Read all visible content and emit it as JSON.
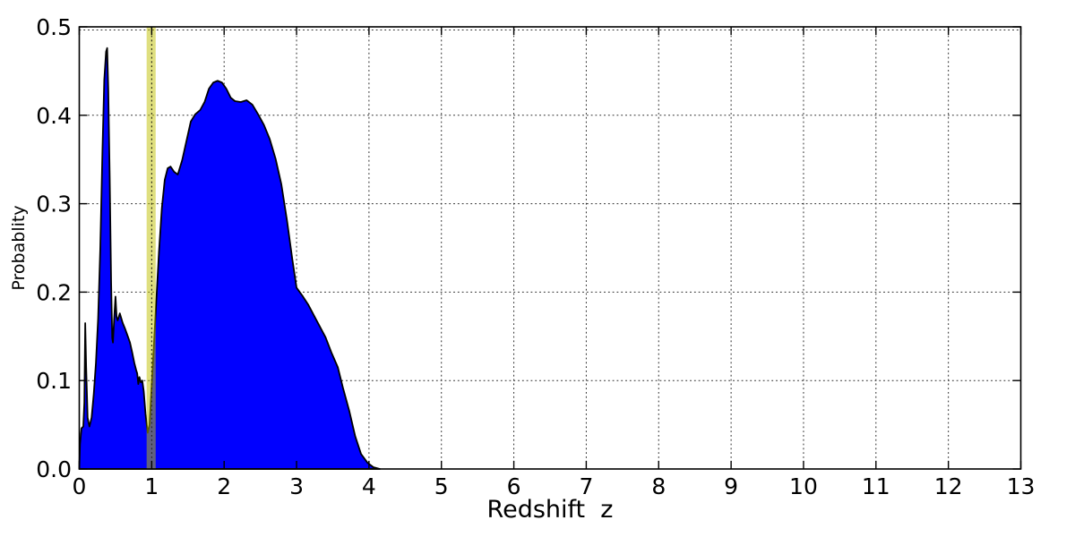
{
  "chart_data": {
    "type": "area",
    "title": "",
    "xlabel": "Redshift  z",
    "ylabel": "Probablity",
    "xlim": [
      0,
      13
    ],
    "ylim": [
      0.0,
      0.5
    ],
    "x_ticks": [
      0,
      1,
      2,
      3,
      4,
      5,
      6,
      7,
      8,
      9,
      10,
      11,
      12,
      13
    ],
    "x_tick_labels": [
      "0",
      "1",
      "2",
      "3",
      "4",
      "5",
      "6",
      "7",
      "8",
      "9",
      "10",
      "11",
      "12",
      "13"
    ],
    "y_ticks": [
      0.0,
      0.1,
      0.2,
      0.3,
      0.4,
      0.5
    ],
    "y_tick_labels": [
      "0.0",
      "0.1",
      "0.2",
      "0.3",
      "0.4",
      "0.5"
    ],
    "grid": {
      "visible": true,
      "style": "dotted",
      "color": "#2a2a2a"
    },
    "legend": null,
    "series": [
      {
        "name": "redshift-probability-density",
        "type": "filled-area",
        "fill_color": "#0000ff",
        "edge_color": "#000000",
        "points": [
          [
            0.0,
            0.0
          ],
          [
            0.01,
            0.028
          ],
          [
            0.03,
            0.046
          ],
          [
            0.055,
            0.048
          ],
          [
            0.07,
            0.075
          ],
          [
            0.082,
            0.165
          ],
          [
            0.095,
            0.115
          ],
          [
            0.115,
            0.058
          ],
          [
            0.14,
            0.048
          ],
          [
            0.17,
            0.058
          ],
          [
            0.2,
            0.085
          ],
          [
            0.23,
            0.12
          ],
          [
            0.26,
            0.17
          ],
          [
            0.29,
            0.25
          ],
          [
            0.32,
            0.36
          ],
          [
            0.345,
            0.44
          ],
          [
            0.37,
            0.472
          ],
          [
            0.385,
            0.476
          ],
          [
            0.4,
            0.43
          ],
          [
            0.42,
            0.33
          ],
          [
            0.44,
            0.21
          ],
          [
            0.455,
            0.148
          ],
          [
            0.465,
            0.143
          ],
          [
            0.48,
            0.168
          ],
          [
            0.5,
            0.195
          ],
          [
            0.515,
            0.172
          ],
          [
            0.53,
            0.168
          ],
          [
            0.56,
            0.176
          ],
          [
            0.6,
            0.165
          ],
          [
            0.635,
            0.158
          ],
          [
            0.67,
            0.15
          ],
          [
            0.7,
            0.143
          ],
          [
            0.73,
            0.132
          ],
          [
            0.76,
            0.12
          ],
          [
            0.785,
            0.112
          ],
          [
            0.8,
            0.108
          ],
          [
            0.815,
            0.096
          ],
          [
            0.83,
            0.104
          ],
          [
            0.85,
            0.098
          ],
          [
            0.87,
            0.1
          ],
          [
            0.89,
            0.088
          ],
          [
            0.915,
            0.062
          ],
          [
            0.945,
            0.041
          ],
          [
            0.97,
            0.05
          ],
          [
            1.0,
            0.095
          ],
          [
            1.03,
            0.14
          ],
          [
            1.06,
            0.185
          ],
          [
            1.1,
            0.245
          ],
          [
            1.14,
            0.295
          ],
          [
            1.18,
            0.327
          ],
          [
            1.22,
            0.34
          ],
          [
            1.26,
            0.342
          ],
          [
            1.31,
            0.336
          ],
          [
            1.36,
            0.333
          ],
          [
            1.42,
            0.349
          ],
          [
            1.48,
            0.371
          ],
          [
            1.54,
            0.393
          ],
          [
            1.6,
            0.401
          ],
          [
            1.67,
            0.406
          ],
          [
            1.73,
            0.415
          ],
          [
            1.79,
            0.43
          ],
          [
            1.85,
            0.437
          ],
          [
            1.91,
            0.439
          ],
          [
            1.97,
            0.437
          ],
          [
            2.03,
            0.43
          ],
          [
            2.09,
            0.42
          ],
          [
            2.15,
            0.416
          ],
          [
            2.23,
            0.415
          ],
          [
            2.31,
            0.417
          ],
          [
            2.39,
            0.412
          ],
          [
            2.47,
            0.401
          ],
          [
            2.55,
            0.389
          ],
          [
            2.63,
            0.373
          ],
          [
            2.71,
            0.351
          ],
          [
            2.79,
            0.322
          ],
          [
            2.87,
            0.28
          ],
          [
            2.94,
            0.238
          ],
          [
            3.0,
            0.205
          ],
          [
            3.08,
            0.196
          ],
          [
            3.16,
            0.186
          ],
          [
            3.27,
            0.169
          ],
          [
            3.4,
            0.149
          ],
          [
            3.48,
            0.132
          ],
          [
            3.57,
            0.115
          ],
          [
            3.64,
            0.092
          ],
          [
            3.73,
            0.065
          ],
          [
            3.81,
            0.037
          ],
          [
            3.89,
            0.017
          ],
          [
            3.98,
            0.007
          ],
          [
            4.06,
            0.002
          ],
          [
            4.15,
            0.0
          ]
        ]
      }
    ],
    "annotations": [
      {
        "name": "highlight-band-z1",
        "type": "vspan",
        "x_min": 0.93,
        "x_max": 1.055,
        "color": "#bfbf00",
        "opacity": 0.5
      },
      {
        "name": "vline-z1",
        "type": "vline",
        "x": 1.0,
        "style": "dotted",
        "color": "#1a1a1a"
      }
    ]
  },
  "figure": {
    "background": "#ffffff",
    "spine_color": "#000000"
  }
}
